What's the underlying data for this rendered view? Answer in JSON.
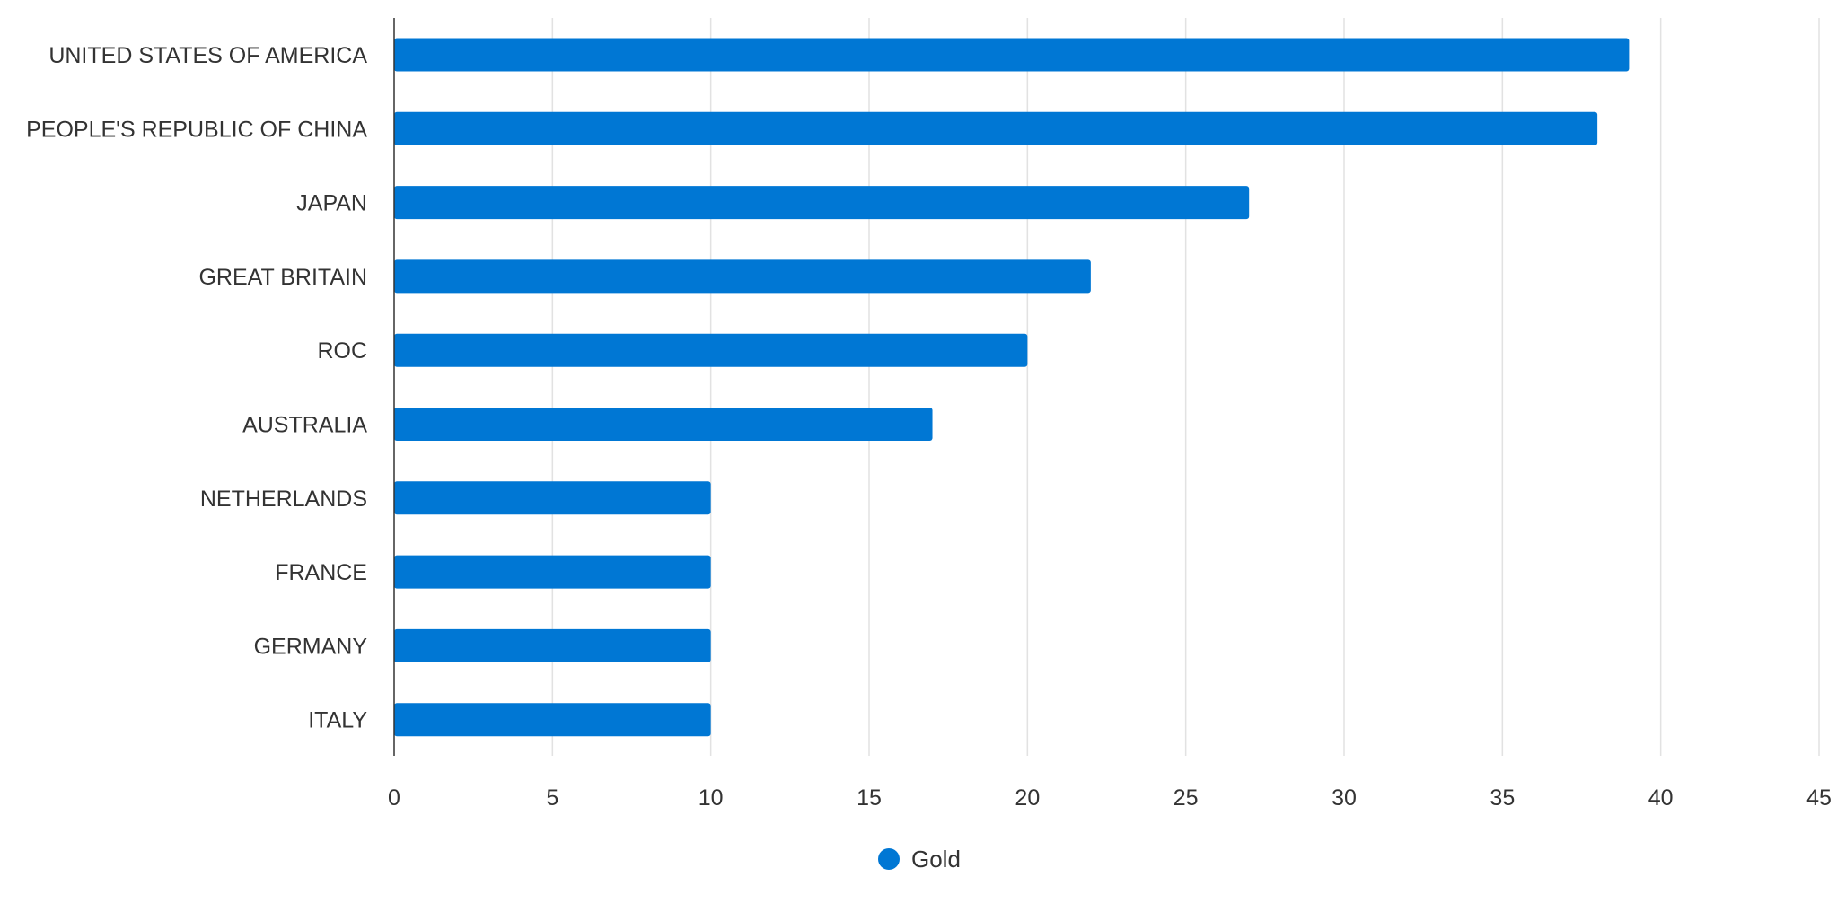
{
  "chart_data": {
    "type": "bar",
    "orientation": "horizontal",
    "categories": [
      "UNITED STATES OF AMERICA",
      "PEOPLE'S REPUBLIC OF CHINA",
      "JAPAN",
      "GREAT BRITAIN",
      "ROC",
      "AUSTRALIA",
      "NETHERLANDS",
      "FRANCE",
      "GERMANY",
      "ITALY"
    ],
    "series": [
      {
        "name": "Gold",
        "color": "#0077d4",
        "values": [
          39,
          38,
          27,
          22,
          20,
          17,
          10,
          10,
          10,
          10
        ]
      }
    ],
    "x_ticks": [
      "0",
      "5",
      "10",
      "15",
      "20",
      "25",
      "30",
      "35",
      "40",
      "45"
    ],
    "xlim": [
      0,
      45
    ],
    "grid": true,
    "legend": {
      "position": "bottom-center",
      "items": [
        {
          "label": "Gold",
          "color": "#0077d4"
        }
      ]
    }
  }
}
